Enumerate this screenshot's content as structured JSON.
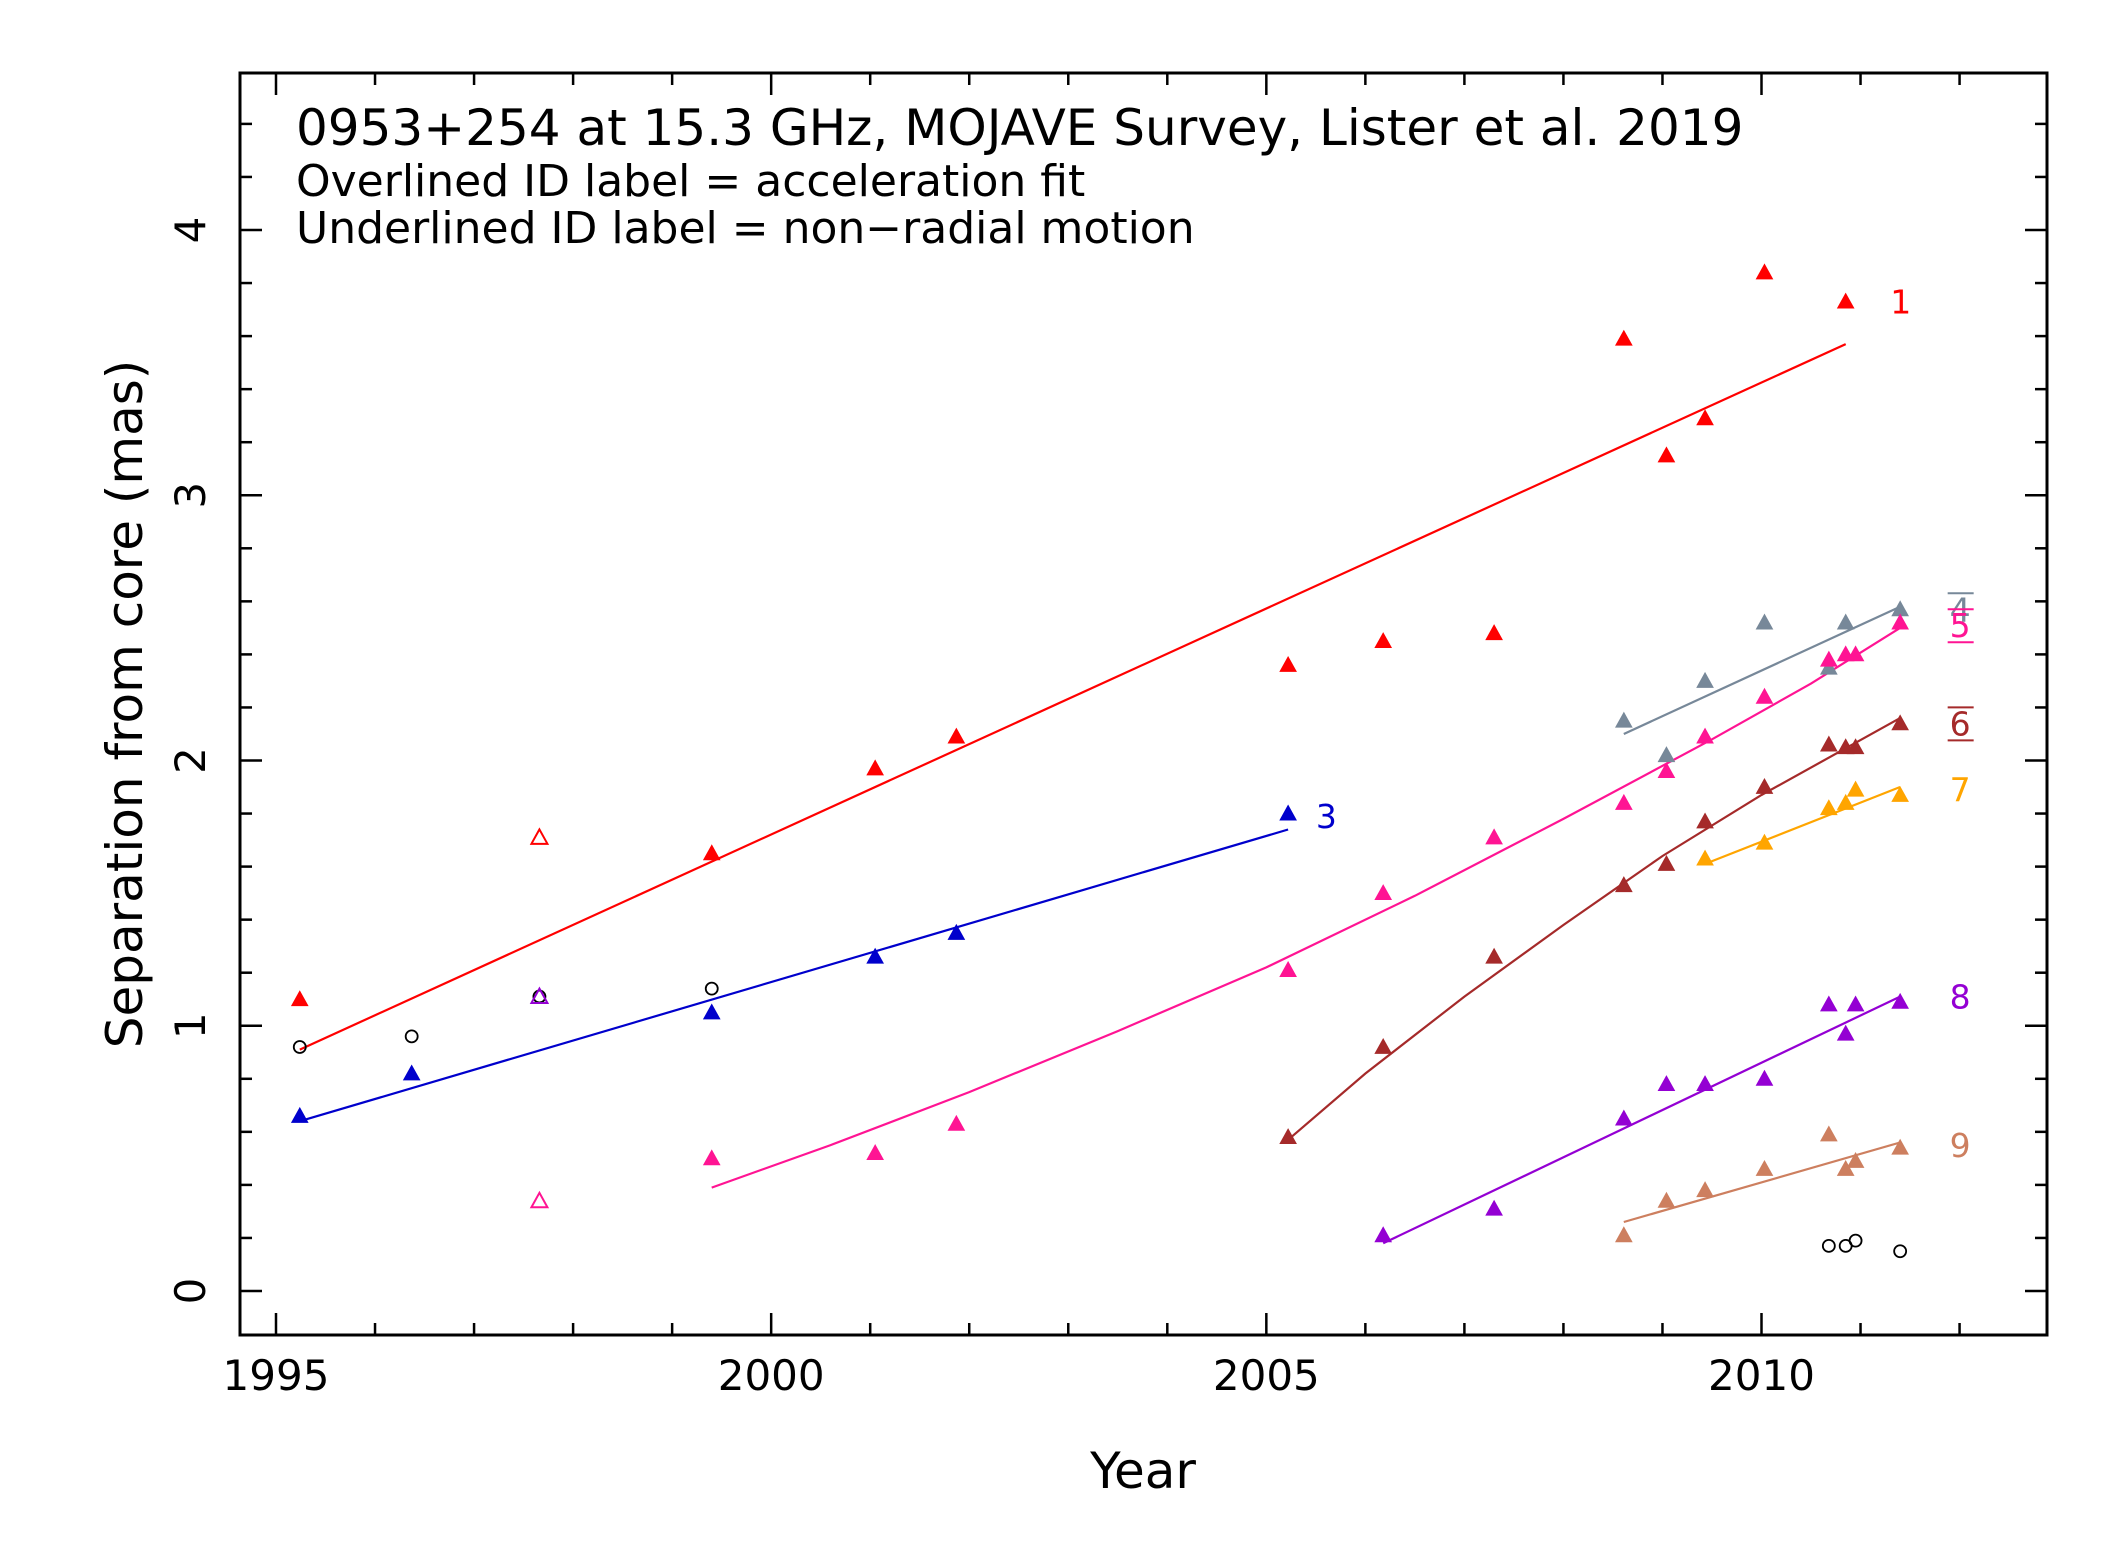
{
  "chart_data": {
    "type": "scatter",
    "title": "0953+254 at 15.3 GHz, MOJAVE Survey, Lister et al. 2019",
    "annotations": [
      "Overlined ID label = acceleration fit",
      "Underlined ID label = non−radial motion"
    ],
    "xlabel": "Year",
    "ylabel": "Separation from core (mas)",
    "xlim": [
      1993.6,
      2013.0
    ],
    "ylim": [
      -0.19,
      4.6
    ],
    "x_ticks": [
      1995,
      2000,
      2005,
      2010
    ],
    "x_tick_labels": [
      "1995",
      "2000",
      "2005",
      "2010"
    ],
    "y_ticks": [
      0,
      1,
      2,
      3,
      4
    ],
    "y_tick_labels": [
      "0",
      "1",
      "2",
      "3",
      "4"
    ],
    "grid": false,
    "series": [
      {
        "name": "1",
        "color": "#ff0000",
        "label_decoration": "none",
        "label_pos": [
          2011.3,
          3.73
        ],
        "points": [
          [
            1995.24,
            1.1
          ],
          [
            1999.4,
            1.65
          ],
          [
            2001.05,
            1.97
          ],
          [
            2001.87,
            2.09
          ],
          [
            2005.22,
            2.36
          ],
          [
            2006.18,
            2.45
          ],
          [
            2007.3,
            2.48
          ],
          [
            2008.61,
            3.59
          ],
          [
            2009.04,
            3.15
          ],
          [
            2009.43,
            3.29
          ],
          [
            2010.03,
            3.84
          ],
          [
            2010.85,
            3.73
          ]
        ],
        "fit": [
          [
            1995.24,
            0.91
          ],
          [
            2010.85,
            3.57
          ]
        ]
      },
      {
        "name": "3",
        "color": "#0000cc",
        "label_decoration": "none",
        "label_pos": [
          2005.5,
          1.79
        ],
        "points": [
          [
            1995.24,
            0.66
          ],
          [
            1996.37,
            0.82
          ],
          [
            1999.4,
            1.05
          ],
          [
            2001.05,
            1.26
          ],
          [
            2001.87,
            1.35
          ],
          [
            2005.22,
            1.8
          ]
        ],
        "fit": [
          [
            1995.24,
            0.64
          ],
          [
            2005.22,
            1.74
          ]
        ]
      },
      {
        "name": "4",
        "color": "#778899",
        "label_decoration": "overline",
        "label_pos": [
          2011.9,
          2.57
        ],
        "points": [
          [
            2008.61,
            2.15
          ],
          [
            2009.04,
            2.02
          ],
          [
            2009.43,
            2.3
          ],
          [
            2010.03,
            2.52
          ],
          [
            2010.68,
            2.35
          ],
          [
            2010.85,
            2.52
          ],
          [
            2011.4,
            2.57
          ]
        ],
        "fit": [
          [
            2008.61,
            2.1
          ],
          [
            2011.4,
            2.58
          ]
        ]
      },
      {
        "name": "5",
        "color": "#ff1493",
        "label_decoration": "overline,underline",
        "label_pos": [
          2011.9,
          2.51
        ],
        "points": [
          [
            1999.4,
            0.5
          ],
          [
            2001.05,
            0.52
          ],
          [
            2001.87,
            0.63
          ],
          [
            2005.22,
            1.21
          ],
          [
            2006.18,
            1.5
          ],
          [
            2007.3,
            1.71
          ],
          [
            2008.61,
            1.84
          ],
          [
            2009.04,
            1.96
          ],
          [
            2009.43,
            2.09
          ],
          [
            2010.03,
            2.24
          ],
          [
            2010.68,
            2.38
          ],
          [
            2010.85,
            2.4
          ],
          [
            2010.95,
            2.4
          ],
          [
            2011.4,
            2.52
          ]
        ],
        "fit": [
          [
            1999.4,
            0.39
          ],
          [
            2000.6,
            0.55
          ],
          [
            2002.0,
            0.75
          ],
          [
            2003.5,
            0.98
          ],
          [
            2005.0,
            1.22
          ],
          [
            2006.5,
            1.49
          ],
          [
            2008.0,
            1.78
          ],
          [
            2009.5,
            2.08
          ],
          [
            2010.5,
            2.29
          ],
          [
            2011.4,
            2.5
          ]
        ]
      },
      {
        "name": "6",
        "color": "#a52a2a",
        "label_decoration": "overline,underline",
        "label_pos": [
          2011.9,
          2.14
        ],
        "points": [
          [
            2005.22,
            0.58
          ],
          [
            2006.18,
            0.92
          ],
          [
            2007.3,
            1.26
          ],
          [
            2008.61,
            1.53
          ],
          [
            2009.04,
            1.61
          ],
          [
            2009.43,
            1.77
          ],
          [
            2010.03,
            1.9
          ],
          [
            2010.68,
            2.06
          ],
          [
            2010.85,
            2.05
          ],
          [
            2010.95,
            2.05
          ],
          [
            2011.4,
            2.14
          ]
        ],
        "fit": [
          [
            2005.22,
            0.57
          ],
          [
            2006.0,
            0.82
          ],
          [
            2007.0,
            1.11
          ],
          [
            2008.0,
            1.38
          ],
          [
            2009.0,
            1.64
          ],
          [
            2010.0,
            1.87
          ],
          [
            2011.4,
            2.16
          ]
        ]
      },
      {
        "name": "7",
        "color": "#ffa500",
        "label_decoration": "none",
        "label_pos": [
          2011.9,
          1.89
        ],
        "points": [
          [
            2009.43,
            1.63
          ],
          [
            2010.03,
            1.69
          ],
          [
            2010.68,
            1.82
          ],
          [
            2010.85,
            1.84
          ],
          [
            2010.95,
            1.89
          ],
          [
            2011.4,
            1.87
          ]
        ],
        "fit": [
          [
            2009.43,
            1.61
          ],
          [
            2011.4,
            1.9
          ]
        ]
      },
      {
        "name": "8",
        "color": "#9400d3",
        "label_decoration": "none",
        "label_pos": [
          2011.9,
          1.11
        ],
        "points": [
          [
            2006.18,
            0.21
          ],
          [
            2007.3,
            0.31
          ],
          [
            2008.61,
            0.65
          ],
          [
            2009.04,
            0.78
          ],
          [
            2009.43,
            0.78
          ],
          [
            2010.03,
            0.8
          ],
          [
            2010.68,
            1.08
          ],
          [
            2010.85,
            0.97
          ],
          [
            2010.95,
            1.08
          ],
          [
            2011.4,
            1.09
          ]
        ],
        "fit": [
          [
            2006.18,
            0.18
          ],
          [
            2011.4,
            1.11
          ]
        ]
      },
      {
        "name": "9",
        "color": "#cd7f5f",
        "label_decoration": "none",
        "label_pos": [
          2011.9,
          0.55
        ],
        "points": [
          [
            2008.61,
            0.21
          ],
          [
            2009.04,
            0.34
          ],
          [
            2009.43,
            0.38
          ],
          [
            2010.03,
            0.46
          ],
          [
            2010.68,
            0.59
          ],
          [
            2010.85,
            0.46
          ],
          [
            2010.95,
            0.49
          ],
          [
            2011.4,
            0.54
          ]
        ],
        "fit": [
          [
            2008.61,
            0.26
          ],
          [
            2011.4,
            0.56
          ]
        ]
      }
    ],
    "unassociated": {
      "marker": "open-circle",
      "color": "#000000",
      "points": [
        [
          1995.24,
          0.92
        ],
        [
          1996.37,
          0.96
        ],
        [
          1997.66,
          1.11
        ],
        [
          1999.4,
          1.14
        ],
        [
          2010.68,
          0.17
        ],
        [
          2010.85,
          0.17
        ],
        [
          2010.95,
          0.19
        ],
        [
          2011.4,
          0.15
        ]
      ]
    },
    "open_triangles": [
      {
        "color": "#ff0000",
        "point": [
          1997.66,
          1.71
        ]
      },
      {
        "color": "#9400d3",
        "point": [
          1997.66,
          1.11
        ]
      },
      {
        "color": "#ff1493",
        "point": [
          1997.66,
          0.34
        ]
      }
    ]
  }
}
